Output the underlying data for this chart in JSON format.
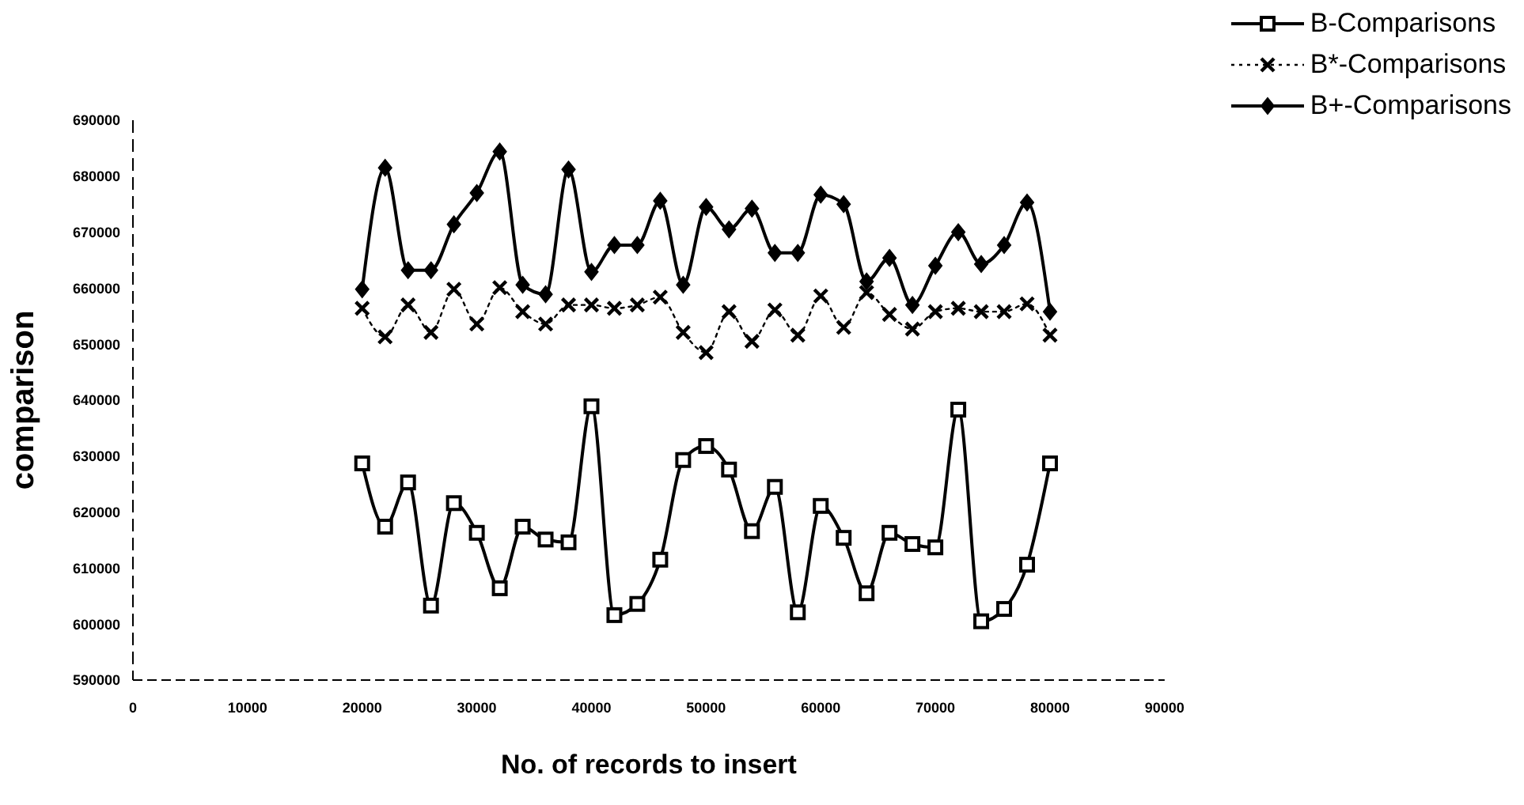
{
  "chart_data": {
    "type": "line",
    "xlabel": "No. of records to insert",
    "ylabel": "comparison",
    "x": [
      20000,
      22000,
      24000,
      26000,
      28000,
      30000,
      32000,
      34000,
      36000,
      38000,
      40000,
      42000,
      44000,
      46000,
      48000,
      50000,
      52000,
      54000,
      56000,
      58000,
      60000,
      62000,
      64000,
      66000,
      68000,
      70000,
      72000,
      74000,
      76000,
      78000,
      80000
    ],
    "series": [
      {
        "name": "B-Comparisons",
        "color": "#000000",
        "marker": "square",
        "line_style": "solid",
        "values": [
          628700,
          617400,
          625300,
          603300,
          621600,
          616300,
          606400,
          617400,
          615100,
          614600,
          638900,
          601600,
          603600,
          611500,
          629300,
          631800,
          627600,
          616600,
          624500,
          602100,
          621100,
          615400,
          605500,
          616300,
          614300,
          613700,
          638300,
          600500,
          602700,
          610600,
          628700
        ]
      },
      {
        "name": "B*-Comparisons",
        "color": "#000000",
        "marker": "cross",
        "line_style": "dotted",
        "values": [
          656400,
          651300,
          657000,
          652100,
          659800,
          653600,
          660100,
          655800,
          653600,
          657000,
          657000,
          656400,
          657000,
          658400,
          652100,
          648500,
          655800,
          650500,
          656100,
          651600,
          658600,
          653000,
          659200,
          655300,
          652700,
          655800,
          656400,
          655800,
          655800,
          657200,
          651600
        ]
      },
      {
        "name": "B+-Comparisons",
        "color": "#000000",
        "marker": "diamond",
        "line_style": "solid",
        "values": [
          659800,
          681500,
          663200,
          663200,
          671400,
          677000,
          684400,
          660600,
          658900,
          681200,
          662900,
          667700,
          667700,
          675600,
          660600,
          674500,
          670500,
          674200,
          666300,
          666300,
          676700,
          675000,
          661200,
          665400,
          657000,
          664000,
          670000,
          664300,
          667700,
          675300,
          655800
        ]
      }
    ],
    "xlim": [
      0,
      90000
    ],
    "xticks": [
      0,
      10000,
      20000,
      30000,
      40000,
      50000,
      60000,
      70000,
      80000,
      90000
    ],
    "ylim": [
      590000,
      690000
    ],
    "yticks": [
      590000,
      600000,
      610000,
      620000,
      630000,
      640000,
      650000,
      660000,
      670000,
      680000,
      690000
    ],
    "grid": false,
    "legend": "top right"
  }
}
